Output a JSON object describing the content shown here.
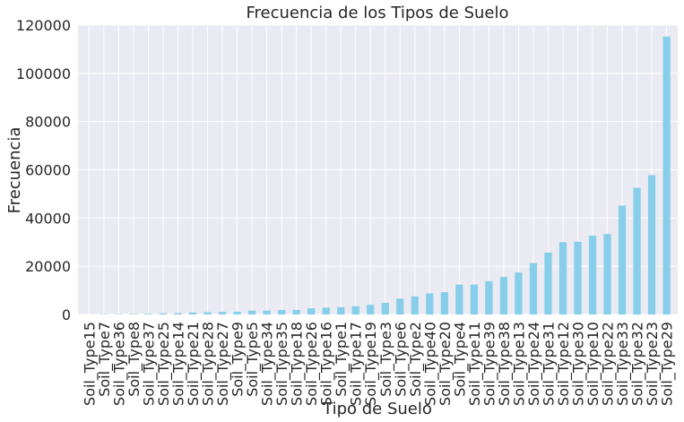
{
  "chart_data": {
    "type": "bar",
    "title": "Frecuencia de los Tipos de Suelo",
    "xlabel": "Tipo de Suelo",
    "ylabel": "Frecuencia",
    "ylim": [
      0,
      120000
    ],
    "yticks": [
      0,
      20000,
      40000,
      60000,
      80000,
      100000,
      120000
    ],
    "grid": true,
    "bar_color": "#87CEEB",
    "background_color": "#EAEAF2",
    "grid_color": "#FFFFFF",
    "categories": [
      "Soil_Type15",
      "Soil_Type7",
      "Soil_Type36",
      "Soil_Type8",
      "Soil_Type37",
      "Soil_Type25",
      "Soil_Type14",
      "Soil_Type21",
      "Soil_Type28",
      "Soil_Type27",
      "Soil_Type9",
      "Soil_Type5",
      "Soil_Type34",
      "Soil_Type35",
      "Soil_Type18",
      "Soil_Type26",
      "Soil_Type16",
      "Soil_Type1",
      "Soil_Type17",
      "Soil_Type19",
      "Soil_Type3",
      "Soil_Type6",
      "Soil_Type2",
      "Soil_Type40",
      "Soil_Type20",
      "Soil_Type4",
      "Soil_Type11",
      "Soil_Type39",
      "Soil_Type38",
      "Soil_Type13",
      "Soil_Type24",
      "Soil_Type31",
      "Soil_Type12",
      "Soil_Type30",
      "Soil_Type10",
      "Soil_Type22",
      "Soil_Type33",
      "Soil_Type32",
      "Soil_Type23",
      "Soil_Type29"
    ],
    "values": [
      3,
      105,
      119,
      179,
      298,
      474,
      599,
      838,
      946,
      1086,
      1147,
      1597,
      1611,
      1891,
      1899,
      2589,
      2845,
      3031,
      3422,
      4021,
      4823,
      6575,
      7525,
      8750,
      9259,
      12396,
      12410,
      13806,
      15573,
      17431,
      21278,
      25666,
      29971,
      30170,
      32634,
      33373,
      45154,
      52519,
      57752,
      115247
    ]
  }
}
